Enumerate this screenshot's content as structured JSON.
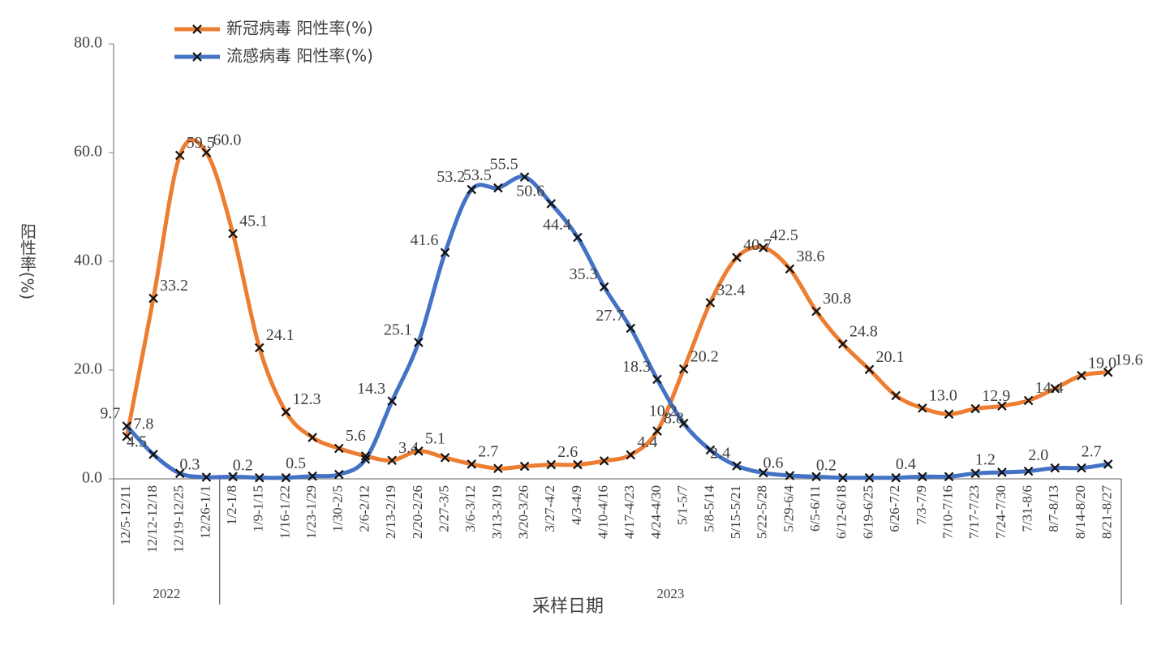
{
  "chart_data": {
    "type": "line",
    "y_label": "阳性率(%)",
    "x_label": "采样日期",
    "categories": [
      "12/5-12/11",
      "12/12-12/18",
      "12/19-12/25",
      "12/26-1/1",
      "1/2-1/8",
      "1/9-1/15",
      "1/16-1/22",
      "1/23-1/29",
      "1/30-2/5",
      "2/6-2/12",
      "2/13-2/19",
      "2/20-2/26",
      "2/27-3/5",
      "3/6-3/12",
      "3/13-3/19",
      "3/20-3/26",
      "3/27-4/2",
      "4/3-4/9",
      "4/10-4/16",
      "4/17-4/23",
      "4/24-4/30",
      "5/1-5/7",
      "5/8-5/14",
      "5/15-5/21",
      "5/22-5/28",
      "5/29-6/4",
      "6/5-6/11",
      "6/12-6/18",
      "6/19-6/25",
      "6/26-7/2",
      "7/3-7/9",
      "7/10-7/16",
      "7/17-7/23",
      "7/24-7/30",
      "7/31-8/6",
      "8/7-8/13",
      "8/14-8/20",
      "8/21-8/27"
    ],
    "category_years": [
      "2022",
      "2022",
      "2022",
      "2022",
      "2023",
      "2023",
      "2023",
      "2023",
      "2023",
      "2023",
      "2023",
      "2023",
      "2023",
      "2023",
      "2023",
      "2023",
      "2023",
      "2023",
      "2023",
      "2023",
      "2023",
      "2023",
      "2023",
      "2023",
      "2023",
      "2023",
      "2023",
      "2023",
      "2023",
      "2023",
      "2023",
      "2023",
      "2023",
      "2023",
      "2023",
      "2023",
      "2023",
      "2023"
    ],
    "series": [
      {
        "name": "新冠病毒 阳性率(%)",
        "color": "#ED7D31",
        "values": [
          7.8,
          33.2,
          59.5,
          60.0,
          45.1,
          24.1,
          12.3,
          7.6,
          5.6,
          4.2,
          3.4,
          5.1,
          3.9,
          2.7,
          1.9,
          2.3,
          2.6,
          2.6,
          3.3,
          4.4,
          8.8,
          20.2,
          32.4,
          40.7,
          42.5,
          38.6,
          30.8,
          24.8,
          20.1,
          15.3,
          13.0,
          11.9,
          12.9,
          13.4,
          14.4,
          16.6,
          19.0,
          19.6
        ],
        "value_labels": [
          "7.8",
          "33.2",
          "59.5",
          "60.0",
          "45.1",
          "24.1",
          "12.3",
          null,
          "5.6",
          null,
          "3.4",
          "5.1",
          null,
          "2.7",
          null,
          null,
          "2.6",
          null,
          null,
          "4.4",
          "8.8",
          "20.2",
          "32.4",
          "40.7",
          "42.5",
          "38.6",
          "30.8",
          "24.8",
          "20.1",
          null,
          "13.0",
          null,
          "12.9",
          null,
          "14.4",
          null,
          "19.0",
          "19.6"
        ]
      },
      {
        "name": "流感病毒 阳性率(%)",
        "color": "#4472C4",
        "values": [
          9.7,
          4.5,
          1.0,
          0.3,
          0.4,
          0.2,
          0.2,
          0.5,
          0.8,
          3.6,
          14.3,
          25.1,
          41.6,
          53.2,
          53.5,
          55.5,
          50.6,
          44.4,
          35.3,
          27.7,
          18.3,
          10.2,
          5.3,
          2.4,
          1.1,
          0.6,
          0.4,
          0.2,
          0.2,
          0.2,
          0.4,
          0.4,
          1.0,
          1.2,
          1.4,
          2.0,
          2.0,
          2.7
        ],
        "value_labels": [
          "9.7",
          "4.5",
          null,
          "0.3",
          null,
          "0.2",
          null,
          "0.5",
          null,
          null,
          "14.3",
          "25.1",
          "41.6",
          "53.2",
          "53.5",
          "55.5",
          "50.6",
          "44.4",
          "35.3",
          "27.7",
          "18.3",
          "10.2",
          null,
          "2.4",
          null,
          "0.6",
          null,
          "0.2",
          null,
          null,
          "0.4",
          null,
          null,
          "1.2",
          null,
          "2.0",
          null,
          "2.7"
        ]
      }
    ],
    "ylim": [
      0,
      80
    ],
    "yticks": [
      {
        "value": 0,
        "label": "0.0"
      },
      {
        "value": 20,
        "label": "20.0"
      },
      {
        "value": 40,
        "label": "40.0"
      },
      {
        "value": 60,
        "label": "60.0"
      },
      {
        "value": 80,
        "label": "80.0"
      }
    ],
    "grid": false,
    "legend": "top-left",
    "smooth": true
  }
}
